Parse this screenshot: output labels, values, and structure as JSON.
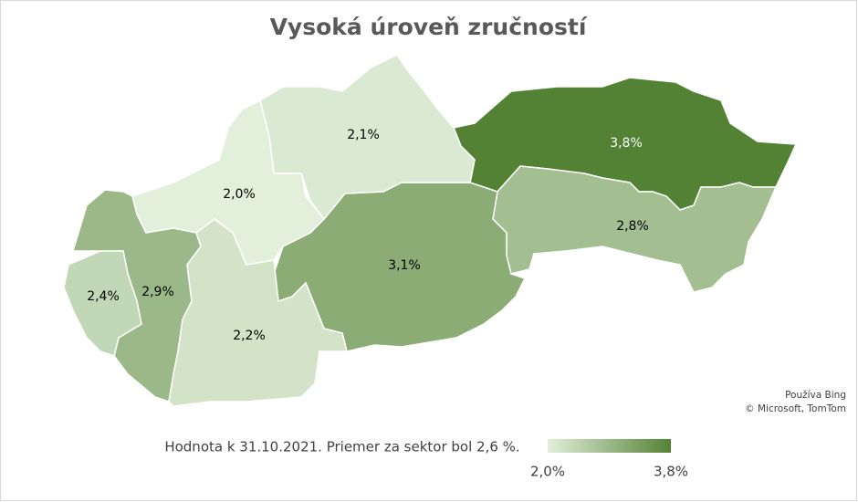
{
  "chart_data": {
    "type": "map",
    "title": "Vysoká úroveň zručností",
    "values": [
      3.8,
      2.8,
      3.1,
      2.1,
      2.0,
      2.9,
      2.4,
      2.2
    ],
    "value_labels": [
      "3,8%",
      "2,8%",
      "3,1%",
      "2,1%",
      "2,0%",
      "2,9%",
      "2,4%",
      "2,2%"
    ],
    "color_scale": {
      "range": [
        {
          "value": 2.0,
          "label": "2,0%"
        },
        {
          "value": 3.8,
          "label": "3,8%"
        }
      ],
      "colors": [
        "#e2efda",
        "#548235"
      ]
    },
    "note": "Hodnota k 31.10.2021. Priemer za sektor bol 2,6 %.",
    "attribution": [
      "Používa Bing",
      "© Microsoft, TomTom"
    ]
  }
}
